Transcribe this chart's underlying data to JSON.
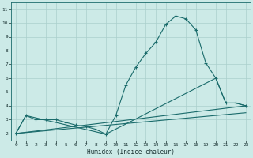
{
  "title": "",
  "xlabel": "Humidex (Indice chaleur)",
  "background_color": "#cceae7",
  "grid_color": "#aacfcc",
  "line_color": "#1a6b6b",
  "xlim": [
    -0.5,
    23.5
  ],
  "ylim": [
    1.5,
    11.5
  ],
  "xticks": [
    0,
    1,
    2,
    3,
    4,
    5,
    6,
    7,
    8,
    9,
    10,
    11,
    12,
    13,
    14,
    15,
    16,
    17,
    18,
    19,
    20,
    21,
    22,
    23
  ],
  "yticks": [
    2,
    3,
    4,
    5,
    6,
    7,
    8,
    9,
    10,
    11
  ],
  "series1_x": [
    0,
    1,
    2,
    3,
    4,
    5,
    6,
    7,
    8,
    9,
    10,
    11,
    12,
    13,
    14,
    15,
    16,
    17,
    18,
    19,
    20,
    21,
    22,
    23
  ],
  "series1_y": [
    2.0,
    3.3,
    3.0,
    3.0,
    3.0,
    2.8,
    2.6,
    2.5,
    2.3,
    1.95,
    3.3,
    5.5,
    6.8,
    7.8,
    8.6,
    9.9,
    10.5,
    10.3,
    9.5,
    7.1,
    6.0,
    4.2,
    4.2,
    4.0
  ],
  "series2_x": [
    0,
    23
  ],
  "series2_y": [
    2.0,
    4.0
  ],
  "series3_x": [
    0,
    23
  ],
  "series3_y": [
    2.0,
    3.5
  ],
  "series4_x": [
    0,
    1,
    9,
    20,
    21,
    22,
    23
  ],
  "series4_y": [
    2.0,
    3.3,
    1.95,
    6.0,
    4.2,
    4.2,
    4.0
  ]
}
